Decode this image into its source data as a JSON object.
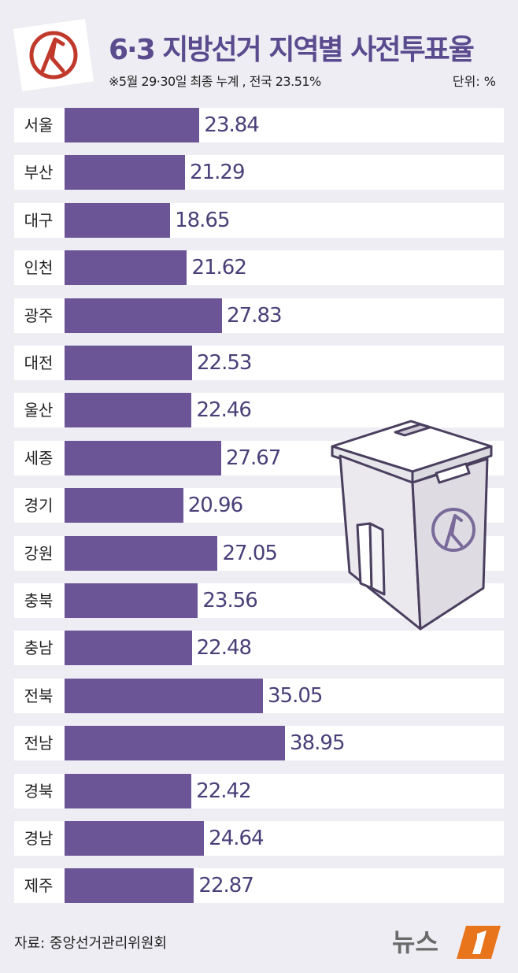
{
  "header": {
    "title": "6·3 지방선거 지역별 사전투표율",
    "subtitle": "※5월 29·30일 최종 누계 , 전국 23.51%",
    "unit": "단위: %"
  },
  "footer": {
    "source": "자료: 중앙선거관리위원회",
    "logo_text": "뉴스1"
  },
  "colors": {
    "bar": "#6b5596",
    "title": "#5a4b8f",
    "value_text": "#4a3f78",
    "stamp": "#c0392b",
    "logo_accent": "#e8741c"
  },
  "chart_data": {
    "type": "bar",
    "orientation": "horizontal",
    "title": "6·3 지방선거 지역별 사전투표율",
    "xlabel": "",
    "ylabel": "",
    "categories": [
      "서울",
      "부산",
      "대구",
      "인천",
      "광주",
      "대전",
      "울산",
      "세종",
      "경기",
      "강원",
      "충북",
      "충남",
      "전북",
      "전남",
      "경북",
      "경남",
      "제주"
    ],
    "values": [
      23.84,
      21.29,
      18.65,
      21.62,
      27.83,
      22.53,
      22.46,
      27.67,
      20.96,
      27.05,
      23.56,
      22.48,
      35.05,
      38.95,
      22.42,
      24.64,
      22.87
    ],
    "labels": [
      "23.84",
      "21.29",
      "18.65",
      "21.62",
      "27.83",
      "22.53",
      "22.46",
      "27.67",
      "20.96",
      "27.05",
      "23.56",
      "22.48",
      "35.05",
      "38.95",
      "22.42",
      "24.64",
      "22.87"
    ],
    "xlim": [
      0,
      45
    ],
    "grid": false,
    "legend": "none"
  }
}
